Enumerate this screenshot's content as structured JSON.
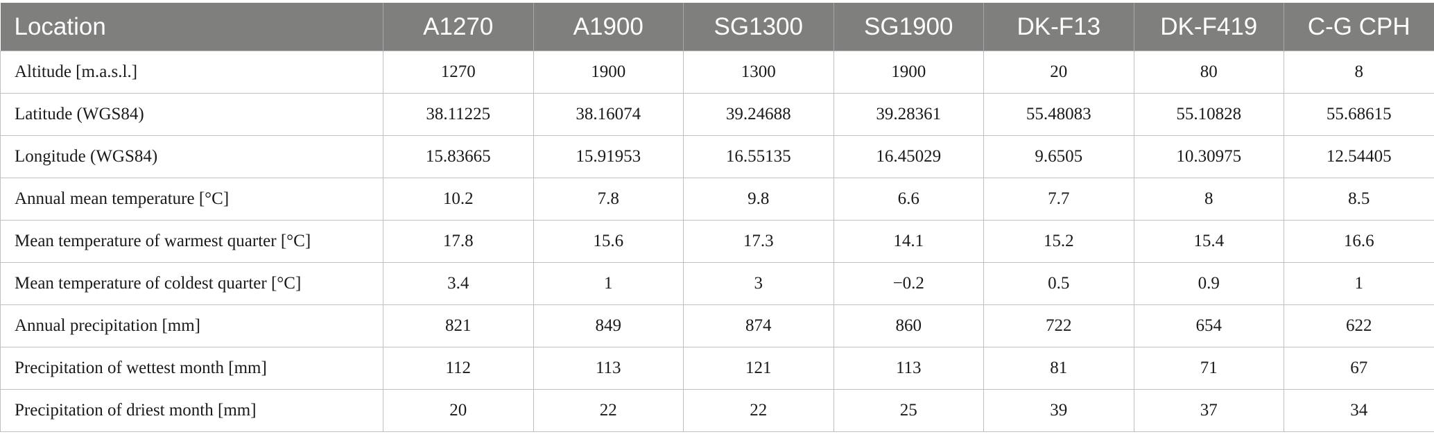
{
  "table": {
    "headers": [
      "Location",
      "A1270",
      "A1900",
      "SG1300",
      "SG1900",
      "DK-F13",
      "DK-F419",
      "C-G CPH"
    ],
    "rows": [
      [
        "Altitude [m.a.s.l.]",
        "1270",
        "1900",
        "1300",
        "1900",
        "20",
        "80",
        "8"
      ],
      [
        "Latitude (WGS84)",
        "38.11225",
        "38.16074",
        "39.24688",
        "39.28361",
        "55.48083",
        "55.10828",
        "55.68615"
      ],
      [
        "Longitude (WGS84)",
        "15.83665",
        "15.91953",
        "16.55135",
        "16.45029",
        "9.6505",
        "10.30975",
        "12.54405"
      ],
      [
        "Annual mean temperature [°C]",
        "10.2",
        "7.8",
        "9.8",
        "6.6",
        "7.7",
        "8",
        "8.5"
      ],
      [
        "Mean temperature of warmest quarter [°C]",
        "17.8",
        "15.6",
        "17.3",
        "14.1",
        "15.2",
        "15.4",
        "16.6"
      ],
      [
        "Mean temperature of coldest quarter [°C]",
        "3.4",
        "1",
        "3",
        "−0.2",
        "0.5",
        "0.9",
        "1"
      ],
      [
        "Annual precipitation [mm]",
        "821",
        "849",
        "874",
        "860",
        "722",
        "654",
        "622"
      ],
      [
        "Precipitation of wettest month [mm]",
        "112",
        "113",
        "121",
        "113",
        "81",
        "71",
        "67"
      ],
      [
        "Precipitation of driest month [mm]",
        "20",
        "22",
        "22",
        "25",
        "39",
        "37",
        "34"
      ]
    ]
  }
}
